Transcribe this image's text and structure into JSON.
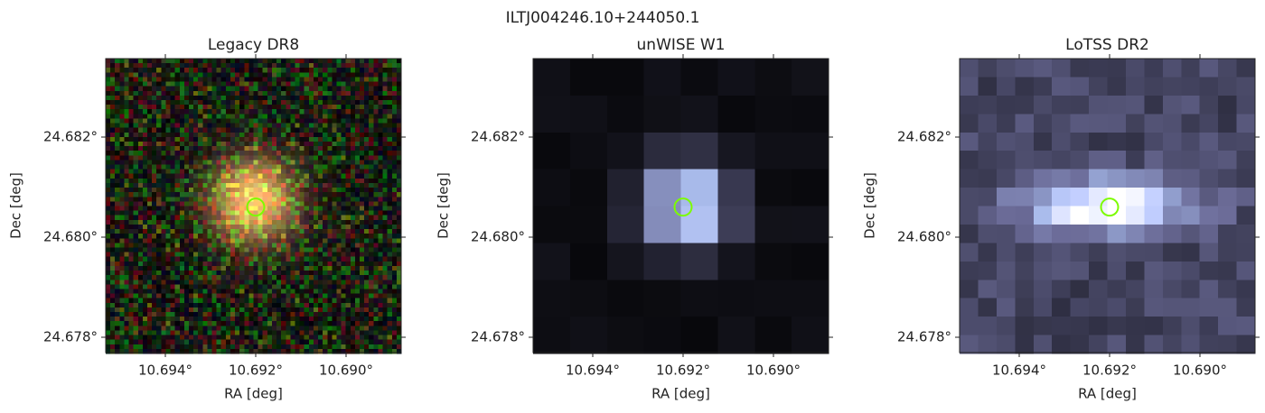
{
  "title": "ILTJ004246.10+244050.1",
  "chart_data": [
    {
      "type": "image",
      "title": "Legacy DR8",
      "xlabel": "RA [deg]",
      "ylabel": "Dec [deg]",
      "xlim": [
        10.69532,
        10.68878
      ],
      "ylim": [
        24.67769,
        24.68357
      ],
      "xticks": [
        {
          "value": 10.694,
          "label": "10.694°"
        },
        {
          "value": 10.692,
          "label": "10.692°"
        },
        {
          "value": 10.69,
          "label": "10.690°"
        }
      ],
      "yticks": [
        {
          "value": 24.678,
          "label": "24.678°"
        },
        {
          "value": 24.68,
          "label": "24.680°"
        },
        {
          "value": 24.682,
          "label": "24.682°"
        }
      ],
      "marker": {
        "x": 10.692,
        "y": 24.6806
      }
    },
    {
      "type": "image",
      "title": "unWISE W1",
      "xlabel": "RA [deg]",
      "ylabel": "Dec [deg]",
      "xlim": [
        10.69532,
        10.68878
      ],
      "ylim": [
        24.67769,
        24.68357
      ],
      "xticks": [
        {
          "value": 10.694,
          "label": "10.694°"
        },
        {
          "value": 10.692,
          "label": "10.692°"
        },
        {
          "value": 10.69,
          "label": "10.690°"
        }
      ],
      "yticks": [
        {
          "value": 24.678,
          "label": "24.678°"
        },
        {
          "value": 24.68,
          "label": "24.680°"
        },
        {
          "value": 24.682,
          "label": "24.682°"
        }
      ],
      "marker": {
        "x": 10.692,
        "y": 24.6806
      }
    },
    {
      "type": "image",
      "title": "LoTSS DR2",
      "xlabel": "RA [deg]",
      "ylabel": "Dec [deg]",
      "xlim": [
        10.69532,
        10.68878
      ],
      "ylim": [
        24.67769,
        24.68357
      ],
      "xticks": [
        {
          "value": 10.694,
          "label": "10.694°"
        },
        {
          "value": 10.692,
          "label": "10.692°"
        },
        {
          "value": 10.69,
          "label": "10.690°"
        }
      ],
      "yticks": [
        {
          "value": 24.678,
          "label": "24.678°"
        },
        {
          "value": 24.68,
          "label": "24.680°"
        },
        {
          "value": 24.682,
          "label": "24.682°"
        }
      ],
      "marker": {
        "x": 10.692,
        "y": 24.6806
      }
    }
  ]
}
